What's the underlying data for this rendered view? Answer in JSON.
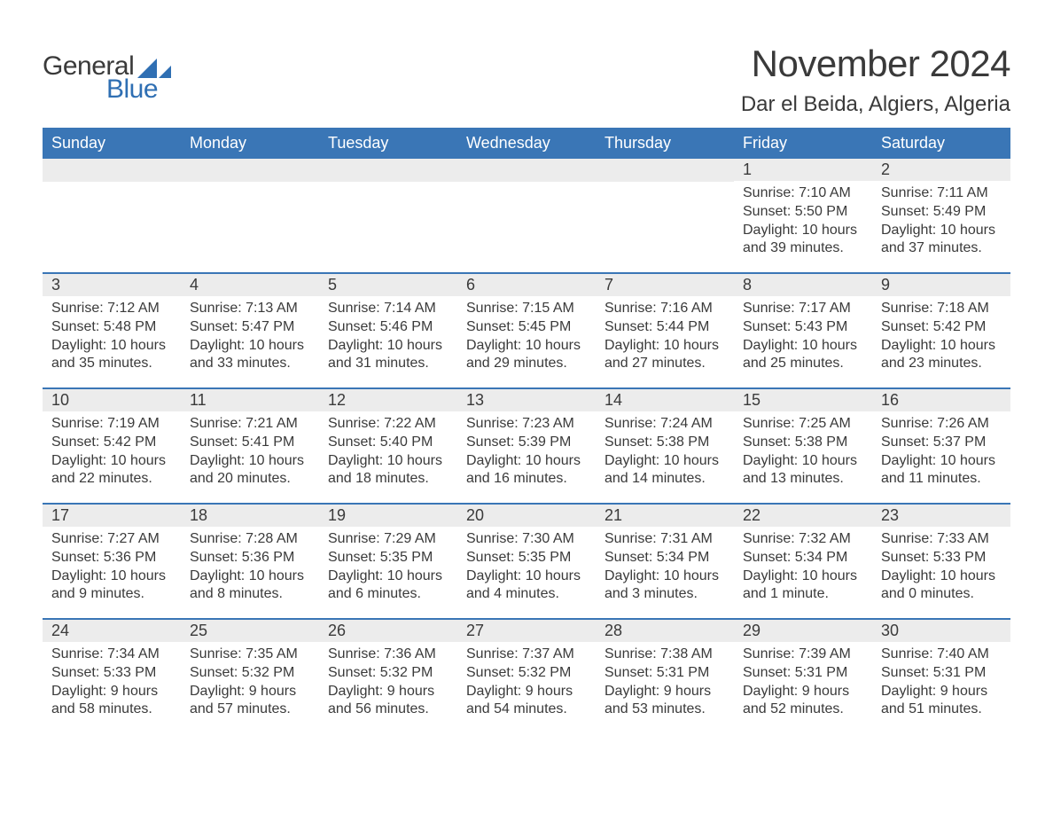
{
  "branding": {
    "logo_word1": "General",
    "logo_word2": "Blue",
    "logo_color_gray": "#3a3a3a",
    "logo_color_blue": "#2f6fb3",
    "shape_color": "#2f6fb3"
  },
  "header": {
    "month_title": "November 2024",
    "location": "Dar el Beida, Algiers, Algeria",
    "title_fontsize": 42,
    "location_fontsize": 24
  },
  "calendar": {
    "header_bg": "#3a76b6",
    "header_fg": "#ffffff",
    "row_divider_color": "#3a76b6",
    "daynum_bg": "#ececec",
    "text_color": "#3a3a3a",
    "background": "#ffffff",
    "columns": [
      "Sunday",
      "Monday",
      "Tuesday",
      "Wednesday",
      "Thursday",
      "Friday",
      "Saturday"
    ],
    "weeks": [
      [
        {
          "day": "",
          "sunrise": "",
          "sunset": "",
          "daylight": ""
        },
        {
          "day": "",
          "sunrise": "",
          "sunset": "",
          "daylight": ""
        },
        {
          "day": "",
          "sunrise": "",
          "sunset": "",
          "daylight": ""
        },
        {
          "day": "",
          "sunrise": "",
          "sunset": "",
          "daylight": ""
        },
        {
          "day": "",
          "sunrise": "",
          "sunset": "",
          "daylight": ""
        },
        {
          "day": "1",
          "sunrise": "Sunrise: 7:10 AM",
          "sunset": "Sunset: 5:50 PM",
          "daylight": "Daylight: 10 hours and 39 minutes."
        },
        {
          "day": "2",
          "sunrise": "Sunrise: 7:11 AM",
          "sunset": "Sunset: 5:49 PM",
          "daylight": "Daylight: 10 hours and 37 minutes."
        }
      ],
      [
        {
          "day": "3",
          "sunrise": "Sunrise: 7:12 AM",
          "sunset": "Sunset: 5:48 PM",
          "daylight": "Daylight: 10 hours and 35 minutes."
        },
        {
          "day": "4",
          "sunrise": "Sunrise: 7:13 AM",
          "sunset": "Sunset: 5:47 PM",
          "daylight": "Daylight: 10 hours and 33 minutes."
        },
        {
          "day": "5",
          "sunrise": "Sunrise: 7:14 AM",
          "sunset": "Sunset: 5:46 PM",
          "daylight": "Daylight: 10 hours and 31 minutes."
        },
        {
          "day": "6",
          "sunrise": "Sunrise: 7:15 AM",
          "sunset": "Sunset: 5:45 PM",
          "daylight": "Daylight: 10 hours and 29 minutes."
        },
        {
          "day": "7",
          "sunrise": "Sunrise: 7:16 AM",
          "sunset": "Sunset: 5:44 PM",
          "daylight": "Daylight: 10 hours and 27 minutes."
        },
        {
          "day": "8",
          "sunrise": "Sunrise: 7:17 AM",
          "sunset": "Sunset: 5:43 PM",
          "daylight": "Daylight: 10 hours and 25 minutes."
        },
        {
          "day": "9",
          "sunrise": "Sunrise: 7:18 AM",
          "sunset": "Sunset: 5:42 PM",
          "daylight": "Daylight: 10 hours and 23 minutes."
        }
      ],
      [
        {
          "day": "10",
          "sunrise": "Sunrise: 7:19 AM",
          "sunset": "Sunset: 5:42 PM",
          "daylight": "Daylight: 10 hours and 22 minutes."
        },
        {
          "day": "11",
          "sunrise": "Sunrise: 7:21 AM",
          "sunset": "Sunset: 5:41 PM",
          "daylight": "Daylight: 10 hours and 20 minutes."
        },
        {
          "day": "12",
          "sunrise": "Sunrise: 7:22 AM",
          "sunset": "Sunset: 5:40 PM",
          "daylight": "Daylight: 10 hours and 18 minutes."
        },
        {
          "day": "13",
          "sunrise": "Sunrise: 7:23 AM",
          "sunset": "Sunset: 5:39 PM",
          "daylight": "Daylight: 10 hours and 16 minutes."
        },
        {
          "day": "14",
          "sunrise": "Sunrise: 7:24 AM",
          "sunset": "Sunset: 5:38 PM",
          "daylight": "Daylight: 10 hours and 14 minutes."
        },
        {
          "day": "15",
          "sunrise": "Sunrise: 7:25 AM",
          "sunset": "Sunset: 5:38 PM",
          "daylight": "Daylight: 10 hours and 13 minutes."
        },
        {
          "day": "16",
          "sunrise": "Sunrise: 7:26 AM",
          "sunset": "Sunset: 5:37 PM",
          "daylight": "Daylight: 10 hours and 11 minutes."
        }
      ],
      [
        {
          "day": "17",
          "sunrise": "Sunrise: 7:27 AM",
          "sunset": "Sunset: 5:36 PM",
          "daylight": "Daylight: 10 hours and 9 minutes."
        },
        {
          "day": "18",
          "sunrise": "Sunrise: 7:28 AM",
          "sunset": "Sunset: 5:36 PM",
          "daylight": "Daylight: 10 hours and 8 minutes."
        },
        {
          "day": "19",
          "sunrise": "Sunrise: 7:29 AM",
          "sunset": "Sunset: 5:35 PM",
          "daylight": "Daylight: 10 hours and 6 minutes."
        },
        {
          "day": "20",
          "sunrise": "Sunrise: 7:30 AM",
          "sunset": "Sunset: 5:35 PM",
          "daylight": "Daylight: 10 hours and 4 minutes."
        },
        {
          "day": "21",
          "sunrise": "Sunrise: 7:31 AM",
          "sunset": "Sunset: 5:34 PM",
          "daylight": "Daylight: 10 hours and 3 minutes."
        },
        {
          "day": "22",
          "sunrise": "Sunrise: 7:32 AM",
          "sunset": "Sunset: 5:34 PM",
          "daylight": "Daylight: 10 hours and 1 minute."
        },
        {
          "day": "23",
          "sunrise": "Sunrise: 7:33 AM",
          "sunset": "Sunset: 5:33 PM",
          "daylight": "Daylight: 10 hours and 0 minutes."
        }
      ],
      [
        {
          "day": "24",
          "sunrise": "Sunrise: 7:34 AM",
          "sunset": "Sunset: 5:33 PM",
          "daylight": "Daylight: 9 hours and 58 minutes."
        },
        {
          "day": "25",
          "sunrise": "Sunrise: 7:35 AM",
          "sunset": "Sunset: 5:32 PM",
          "daylight": "Daylight: 9 hours and 57 minutes."
        },
        {
          "day": "26",
          "sunrise": "Sunrise: 7:36 AM",
          "sunset": "Sunset: 5:32 PM",
          "daylight": "Daylight: 9 hours and 56 minutes."
        },
        {
          "day": "27",
          "sunrise": "Sunrise: 7:37 AM",
          "sunset": "Sunset: 5:32 PM",
          "daylight": "Daylight: 9 hours and 54 minutes."
        },
        {
          "day": "28",
          "sunrise": "Sunrise: 7:38 AM",
          "sunset": "Sunset: 5:31 PM",
          "daylight": "Daylight: 9 hours and 53 minutes."
        },
        {
          "day": "29",
          "sunrise": "Sunrise: 7:39 AM",
          "sunset": "Sunset: 5:31 PM",
          "daylight": "Daylight: 9 hours and 52 minutes."
        },
        {
          "day": "30",
          "sunrise": "Sunrise: 7:40 AM",
          "sunset": "Sunset: 5:31 PM",
          "daylight": "Daylight: 9 hours and 51 minutes."
        }
      ]
    ]
  }
}
